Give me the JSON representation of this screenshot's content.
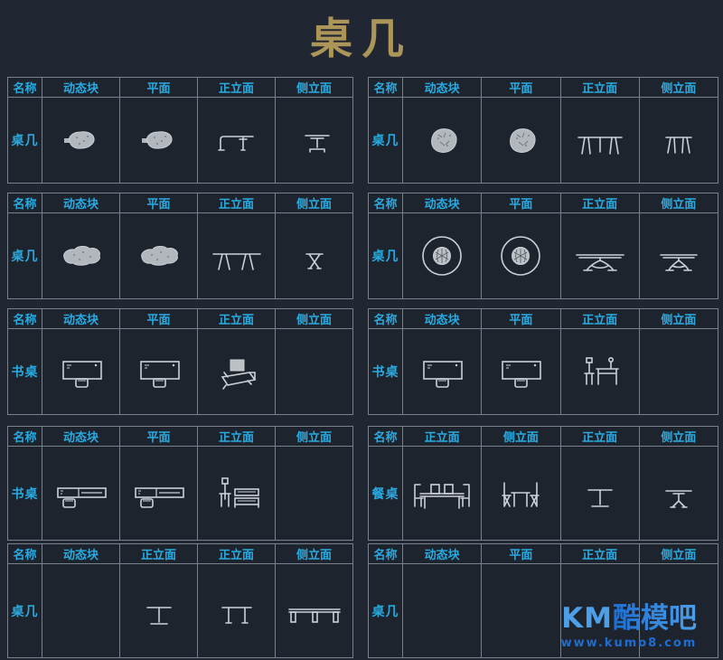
{
  "title": "桌几",
  "colors": {
    "background": "#212732",
    "panel_background": "#1e242e",
    "grid_line": "#79828c",
    "header_cyan": "#29abe2",
    "title_gold": "#ab9559",
    "icon_gray": "#ccd1d6",
    "logo_blue_light": "#4d9fe8",
    "logo_blue_dark": "#1d6ed2"
  },
  "watermark": {
    "km": "KM",
    "cn": "酷模吧",
    "url": "www.kumo8.com"
  },
  "panels": [
    {
      "id": "r1-left",
      "label": "桌几",
      "headers": [
        "名称",
        "动态块",
        "平面",
        "正立面",
        "侧立面"
      ],
      "cells": [
        "blob-table-plan-icon",
        "blob-table-plan-icon",
        "console-table-front-icon",
        "pedestal-table-side-icon"
      ]
    },
    {
      "id": "r1-right",
      "label": "桌几",
      "headers": [
        "名称",
        "动态块",
        "平面",
        "正立面",
        "侧立面"
      ],
      "cells": [
        "rock-table-plan-icon",
        "rock-table-plan-icon",
        "splayed-leg-table-front-icon",
        "splayed-leg-table-side-icon"
      ]
    },
    {
      "id": "r2-left",
      "label": "桌几",
      "headers": [
        "名称",
        "动态块",
        "平面",
        "正立面",
        "侧立面"
      ],
      "cells": [
        "cloud-table-plan-icon",
        "cloud-table-plan-icon",
        "angled-leg-table-front-icon",
        "cross-leg-table-side-icon"
      ]
    },
    {
      "id": "r2-right",
      "label": "桌几",
      "headers": [
        "名称",
        "动态块",
        "平面",
        "正立面",
        "侧立面"
      ],
      "cells": [
        "round-table-plan-icon",
        "round-table-plan-icon",
        "x-pedestal-table-front-icon",
        "x-pedestal-table-side-icon"
      ]
    },
    {
      "id": "r3-left",
      "label": "书桌",
      "headers": [
        "名称",
        "动态块",
        "平面",
        "正立面",
        "侧立面"
      ],
      "cells": [
        "desk-chair-plan-icon",
        "desk-chair-plan-icon",
        "desk-perspective-icon",
        ""
      ]
    },
    {
      "id": "r3-right",
      "label": "书桌",
      "headers": [
        "名称",
        "动态块",
        "平面",
        "正立面",
        "侧立面"
      ],
      "cells": [
        "desk-chair-plan-icon",
        "desk-chair-plan-icon",
        "desk-chair-side-icon",
        ""
      ]
    },
    {
      "id": "r4-left",
      "label": "书桌",
      "headers": [
        "名称",
        "动态块",
        "平面",
        "正立面",
        "侧立面"
      ],
      "cells": [
        "l-desk-plan-icon",
        "l-desk-plan-icon",
        "desk-shelf-side-icon",
        ""
      ]
    },
    {
      "id": "r4-right",
      "label": "餐桌",
      "headers": [
        "名称",
        "正立面",
        "侧立面",
        "正立面",
        "侧立面"
      ],
      "cells": [
        "dining-table-chairs-front-icon",
        "dining-table-chairs-side-icon",
        "pedestal-table-front-icon",
        "slant-pedestal-table-side-icon"
      ]
    },
    {
      "id": "r5-left",
      "label": "桌几",
      "headers": [
        "名称",
        "动态块",
        "正立面",
        "正立面",
        "侧立面"
      ],
      "cells": [
        "",
        "pedestal-table-front-icon",
        "two-leg-table-front-icon",
        "long-table-side-icon"
      ]
    },
    {
      "id": "r5-right",
      "label": "桌几",
      "headers": [
        "名称",
        "动态块",
        "平面",
        "正立面",
        "侧立面"
      ],
      "cells": [
        "",
        "",
        "",
        ""
      ],
      "watermark": true
    }
  ]
}
